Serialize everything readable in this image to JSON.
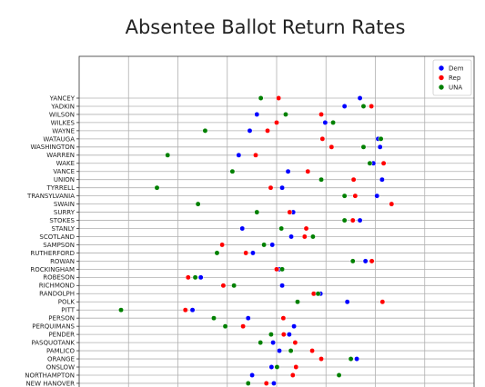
{
  "chart_data": {
    "type": "scatter",
    "title": "Absentee Ballot Return Rates",
    "xlabel": "",
    "ylabel": "",
    "xlim": [
      0,
      1
    ],
    "grid": true,
    "legend_position": "top-right",
    "categories": [
      "YANCEY",
      "YADKIN",
      "WILSON",
      "WILKES",
      "WAYNE",
      "WATAUGA",
      "WASHINGTON",
      "WARREN",
      "WAKE",
      "VANCE",
      "UNION",
      "TYRRELL",
      "TRANSYLVANIA",
      "SWAIN",
      "SURRY",
      "STOKES",
      "STANLY",
      "SCOTLAND",
      "SAMPSON",
      "RUTHERFORD",
      "ROWAN",
      "ROCKINGHAM",
      "ROBESON",
      "RICHMOND",
      "RANDOLPH",
      "POLK",
      "PITT",
      "PERSON",
      "PERQUIMANS",
      "PENDER",
      "PASQUOTANK",
      "PAMLICO",
      "ORANGE",
      "ONSLOW",
      "NORTHAMPTON",
      "NEW HANOVER"
    ],
    "series": [
      {
        "name": "Dem",
        "color": "#0000ff",
        "values": [
          0.711,
          0.672,
          0.45,
          0.623,
          0.432,
          0.757,
          0.762,
          0.404,
          0.745,
          0.529,
          0.767,
          0.514,
          0.754,
          0.791,
          0.542,
          0.711,
          0.413,
          0.537,
          0.489,
          0.44,
          0.725,
          0.507,
          0.308,
          0.514,
          0.611,
          0.679,
          0.287,
          0.428,
          0.544,
          0.532,
          0.491,
          0.507,
          0.703,
          0.487,
          0.438,
          0.493
        ]
      },
      {
        "name": "Rep",
        "color": "#ff0000",
        "values": [
          0.505,
          0.74,
          0.613,
          0.5,
          0.477,
          0.616,
          0.639,
          0.447,
          0.771,
          0.579,
          0.695,
          0.485,
          0.699,
          0.791,
          0.533,
          0.693,
          0.575,
          0.571,
          0.362,
          0.422,
          0.741,
          0.5,
          0.276,
          0.365,
          0.594,
          0.768,
          0.269,
          0.517,
          0.415,
          0.518,
          0.547,
          0.59,
          0.613,
          0.549,
          0.541,
          0.474
        ]
      },
      {
        "name": "UNA",
        "color": "#008000",
        "values": [
          0.46,
          0.72,
          0.523,
          0.643,
          0.319,
          0.764,
          0.72,
          0.224,
          0.736,
          0.388,
          0.613,
          0.197,
          0.672,
          0.301,
          0.45,
          0.672,
          0.512,
          0.592,
          0.468,
          0.349,
          0.693,
          0.514,
          0.294,
          0.392,
          0.605,
          0.553,
          0.106,
          0.341,
          0.37,
          0.486,
          0.459,
          0.536,
          0.688,
          0.501,
          0.658,
          0.428
        ]
      }
    ]
  },
  "legend": {
    "items": [
      {
        "label": "Dem",
        "color": "#0000ff"
      },
      {
        "label": "Rep",
        "color": "#ff0000"
      },
      {
        "label": "UNA",
        "color": "#008000"
      }
    ]
  }
}
